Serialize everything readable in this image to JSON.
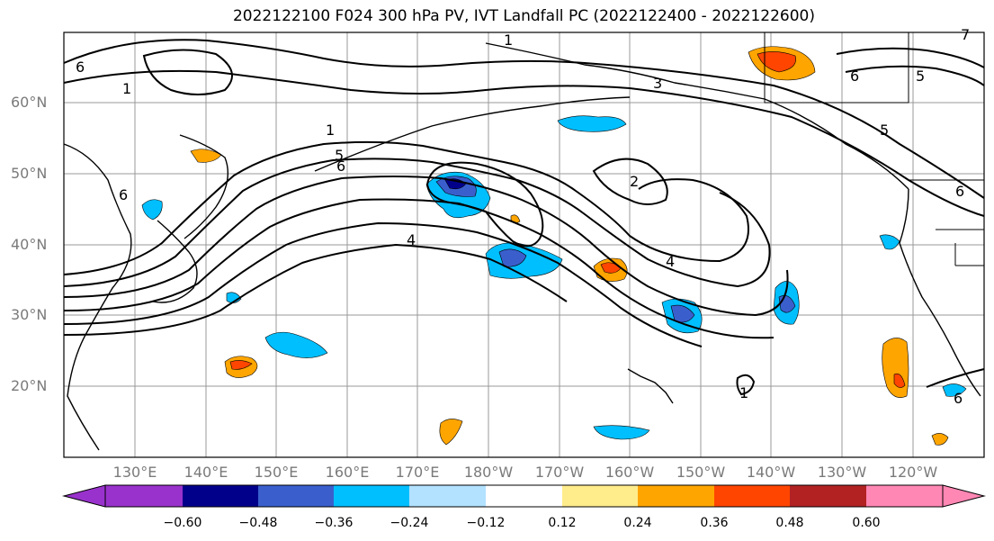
{
  "title": "2022122100 F024 300 hPa PV, IVT Landfall PC (2022122400 - 2022122600)",
  "map": {
    "lat_labels": [
      "60°N",
      "50°N",
      "40°N",
      "30°N",
      "20°N"
    ],
    "lon_labels": [
      "130°E",
      "140°E",
      "150°E",
      "160°E",
      "170°E",
      "180°W",
      "170°W",
      "160°W",
      "150°W",
      "140°W",
      "130°W",
      "120°W"
    ],
    "contour_labels": [
      "1",
      "3",
      "6",
      "5",
      "1",
      "6",
      "5",
      "6",
      "1",
      "5",
      "6",
      "2",
      "4",
      "4",
      "6",
      "7",
      "1",
      "6"
    ],
    "gridline_color": "#999999",
    "contour_color": "#000000"
  },
  "colorbar": {
    "labels": [
      "−0.60",
      "−0.48",
      "−0.36",
      "−0.24",
      "−0.12",
      "0.12",
      "0.24",
      "0.36",
      "0.48",
      "0.60"
    ],
    "colors": [
      "#9932cc",
      "#00008b",
      "#3a5fcd",
      "#00bfff",
      "#b2e2ff",
      "#ffffff",
      "#ffec8b",
      "#ffa500",
      "#ff4500",
      "#b22222",
      "#ff87b4"
    ]
  }
}
